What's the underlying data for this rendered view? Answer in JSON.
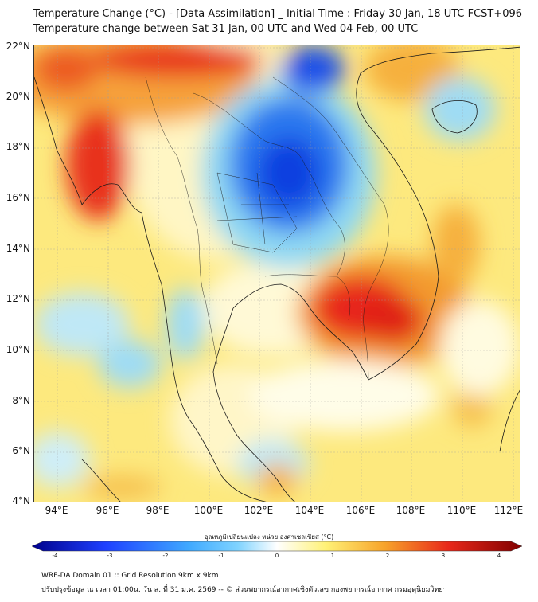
{
  "title": {
    "line1": "Temperature Change (°C) - [Data Assimilation] _ Initial Time : Friday 30 Jan, 18 UTC FCST+096",
    "line2": "Temperature change between Sat 31 Jan, 00 UTC and Wed 04 Feb, 00 UTC"
  },
  "axes": {
    "lat_labels": [
      "22°N",
      "20°N",
      "18°N",
      "16°N",
      "14°N",
      "12°N",
      "10°N",
      "8°N",
      "6°N",
      "4°N"
    ],
    "lon_labels": [
      "94°E",
      "96°E",
      "98°E",
      "100°E",
      "102°E",
      "104°E",
      "106°E",
      "108°E",
      "110°E",
      "112°E"
    ]
  },
  "colorbar": {
    "title": "อุณหภูมิเปลี่ยนแปลง หน่วย องศาเซลเซียส (°C)",
    "ticks": [
      "-4",
      "-3",
      "-2",
      "-1",
      "0",
      "1",
      "2",
      "3",
      "4"
    ],
    "colors": {
      "deep_blue": "#00008b",
      "blue": "#1e40ff",
      "light_blue": "#7fd3ff",
      "white": "#ffffff",
      "yellow": "#fff176",
      "orange": "#f7a32a",
      "red": "#e8281a",
      "dark_red": "#800000"
    }
  },
  "map": {
    "field_colors": {
      "background": "#fde97e",
      "warm_yellow": "#fbe07a",
      "orange": "#f6b03e",
      "red": "#e8321f",
      "pale_blue": "#bfe8f6",
      "cyan": "#8fd8f3",
      "blue": "#2a78ef",
      "deep_blue": "#0f3fe0",
      "white": "#fffde8",
      "land_line": "#1a1a1a"
    }
  },
  "footer": {
    "line1": "WRF-DA Domain 01 :: Grid Resolution 9km x 9km",
    "line2": "ปรับปรุงข้อมูล ณ เวลา 01:00น. วัน ส. ที่ 31 ม.ค. 2569 -- © ส่วนพยากรณ์อากาศเชิงตัวเลข กองพยากรณ์อากาศ กรมอุตุนิยมวิทยา"
  }
}
